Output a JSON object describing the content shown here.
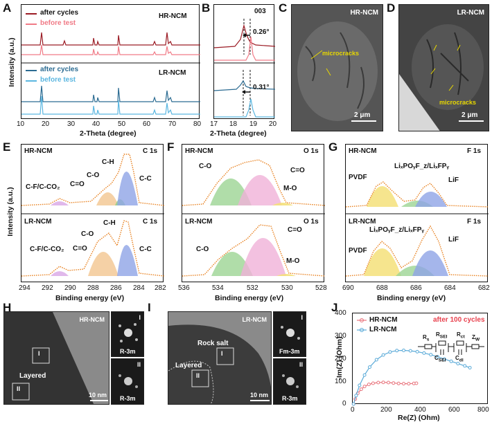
{
  "panels": {
    "A": {
      "label": "A",
      "legend_top": [
        "after cycles",
        "before test"
      ],
      "legend_bottom": [
        "after cycles",
        "before test"
      ],
      "sample_top": "HR-NCM",
      "sample_bottom": "LR-NCM",
      "ylabel": "Intensity (a.u.)",
      "xlabel": "2-Theta (degree)",
      "xticks": [
        "10",
        "20",
        "30",
        "40",
        "50",
        "60",
        "70",
        "80"
      ]
    },
    "B": {
      "label": "B",
      "peak": "003",
      "shift_top": "0.26°",
      "shift_bottom": "0.31°",
      "xlabel": "2-Theta (degree)",
      "xticks": [
        "17",
        "18",
        "19",
        "20"
      ]
    },
    "C": {
      "label": "C",
      "sample": "HR-NCM",
      "annotation": "microcracks",
      "scalebar": "2 μm"
    },
    "D": {
      "label": "D",
      "sample": "LR-NCM",
      "annotation": "microcracks",
      "scalebar": "2 μm"
    },
    "E": {
      "label": "E",
      "ylabel": "Intensity (a.u.)",
      "top_sample": "HR-NCM",
      "top_core": "C 1s",
      "bottom_sample": "LR-NCM",
      "bottom_core": "C 1s",
      "peaks_top": [
        "C-F/C-CO₂",
        "C=O",
        "C-O",
        "C-H",
        "C-C"
      ],
      "peaks_bottom": [
        "C-F/C-CO₂",
        "C=O",
        "C-O",
        "C-H",
        "C-C"
      ],
      "xticks": [
        "294",
        "292",
        "290",
        "288",
        "286",
        "284",
        "282"
      ]
    },
    "F": {
      "label": "F",
      "top_sample": "HR-NCM",
      "top_core": "O 1s",
      "bottom_sample": "LR-NCM",
      "bottom_core": "O 1s",
      "peaks_top": [
        "C-O",
        "C=O",
        "M-O"
      ],
      "peaks_bottom": [
        "C-O",
        "C=O",
        "M-O"
      ],
      "xticks": [
        "536",
        "534",
        "532",
        "530",
        "528"
      ]
    },
    "G": {
      "label": "G",
      "top_sample": "HR-NCM",
      "top_core": "F 1s",
      "bottom_sample": "LR-NCM",
      "bottom_core": "F 1s",
      "peaks_top": [
        "PVDF",
        "LiₓPOᵧF_z/LiₓFPᵧ",
        "LiF"
      ],
      "peaks_bottom": [
        "PVDF",
        "LiₓPOᵧF_z/LiₓFPᵧ",
        "LiF"
      ],
      "xticks": [
        "690",
        "688",
        "686",
        "684",
        "682"
      ]
    },
    "xlabel_binding": "Binding energy (eV)",
    "H": {
      "label": "H",
      "sample": "HR-NCM",
      "region": "Layered",
      "scalebar": "10 nm",
      "roi1": "I",
      "roi2": "II",
      "fft1_label": "I",
      "fft1_phase": "R-3m",
      "fft2_label": "II",
      "fft2_phase": "R-3m"
    },
    "I": {
      "label": "I",
      "sample": "LR-NCM",
      "region1": "Rock salt",
      "region2": "Layered",
      "scalebar": "10 nm",
      "roi1": "I",
      "roi2": "II",
      "fft1_label": "I",
      "fft1_phase": "Fm-3m",
      "fft2_label": "II",
      "fft2_phase": "R-3m"
    },
    "J": {
      "label": "J",
      "legend": [
        "HR-NCM",
        "LR-NCM"
      ],
      "note": "after 100 cycles",
      "ylabel": "-Im(Z) (Ohm)",
      "xlabel": "Re(Z) (Ohm)",
      "circuit": [
        "R",
        "s",
        "R",
        "SEI",
        "R",
        "ct",
        "Z",
        "W",
        "C",
        "SEI",
        "C",
        "dl"
      ],
      "xticks": [
        "0",
        "200",
        "400",
        "600",
        "800"
      ],
      "yticks": [
        "0",
        "100",
        "200",
        "300",
        "400"
      ]
    }
  },
  "chart_data": [
    {
      "type": "line",
      "panel": "J",
      "title": "",
      "xlabel": "Re(Z) (Ohm)",
      "ylabel": "-Im(Z) (Ohm)",
      "xlim": [
        0,
        800
      ],
      "ylim": [
        0,
        400
      ],
      "series": [
        {
          "name": "HR-NCM",
          "color": "#e8737c",
          "x": [
            5,
            15,
            30,
            50,
            70,
            95,
            120,
            150,
            180,
            210,
            240,
            270,
            300,
            330,
            360,
            375
          ],
          "y": [
            3,
            25,
            50,
            68,
            80,
            89,
            94,
            97,
            98,
            97,
            95,
            93,
            92,
            92,
            93,
            94
          ]
        },
        {
          "name": "LR-NCM",
          "color": "#5aaad8",
          "x": [
            5,
            20,
            40,
            70,
            100,
            140,
            180,
            220,
            260,
            300,
            340,
            380,
            420,
            460,
            500,
            540,
            580,
            620,
            660,
            690
          ],
          "y": [
            3,
            40,
            85,
            130,
            165,
            197,
            218,
            231,
            237,
            238,
            236,
            232,
            226,
            219,
            210,
            200,
            190,
            180,
            170,
            162
          ]
        }
      ]
    }
  ],
  "colors": {
    "hr_after": "#9b1b24",
    "hr_before": "#f07a86",
    "lr_after": "#2b6b92",
    "lr_before": "#5ab6e0",
    "fit_orange": "#e8801e",
    "fit_green": "#8fcf8a",
    "fit_blue": "#8ea4e6",
    "fit_pink": "#f0a2d0",
    "fit_yellow": "#f4e07a"
  }
}
